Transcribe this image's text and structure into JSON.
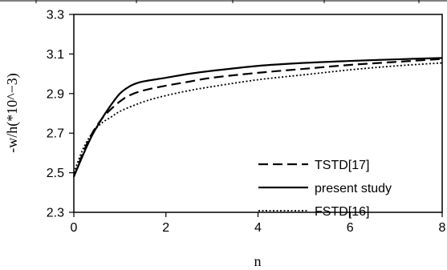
{
  "chart_data": {
    "type": "line",
    "title": "",
    "xlabel": "n",
    "ylabel": "-w/h(*10^−3)",
    "xlim": [
      0,
      8
    ],
    "ylim": [
      2.3,
      3.3
    ],
    "xticks": [
      0,
      2,
      4,
      6,
      8
    ],
    "yticks": [
      2.3,
      2.5,
      2.7,
      2.9,
      3.1,
      3.3
    ],
    "xtick_labels": [
      "0",
      "2",
      "4",
      "6",
      "8"
    ],
    "ytick_labels": [
      "2.3",
      "2.5",
      "2.7",
      "2.9",
      "3.1",
      "3.3"
    ],
    "grid": false,
    "legend_position": "bottom-right",
    "series": [
      {
        "name": "TSTD[17]",
        "style": "dashed",
        "color": "#000000",
        "x": [
          0,
          0.2,
          0.4,
          0.6,
          0.8,
          1.0,
          1.2,
          1.5,
          2.0,
          2.5,
          3.0,
          4.0,
          5.0,
          6.0,
          7.0,
          8.0
        ],
        "y": [
          2.48,
          2.6,
          2.7,
          2.77,
          2.82,
          2.86,
          2.89,
          2.915,
          2.94,
          2.96,
          2.98,
          3.005,
          3.025,
          3.045,
          3.06,
          3.075
        ]
      },
      {
        "name": "present study",
        "style": "solid",
        "color": "#000000",
        "x": [
          0,
          0.2,
          0.4,
          0.6,
          0.8,
          1.0,
          1.2,
          1.4,
          1.6,
          2.0,
          2.5,
          3.0,
          4.0,
          5.0,
          6.0,
          7.0,
          8.0
        ],
        "y": [
          2.48,
          2.59,
          2.69,
          2.77,
          2.84,
          2.9,
          2.935,
          2.955,
          2.965,
          2.98,
          3.0,
          3.015,
          3.04,
          3.055,
          3.065,
          3.073,
          3.08
        ]
      },
      {
        "name": "FSTD[16]",
        "style": "dotted",
        "color": "#000000",
        "x": [
          0,
          0.2,
          0.4,
          0.6,
          0.8,
          1.0,
          1.3,
          1.6,
          2.0,
          2.5,
          3.0,
          4.0,
          5.0,
          6.0,
          7.0,
          8.0
        ],
        "y": [
          2.5,
          2.62,
          2.7,
          2.75,
          2.78,
          2.81,
          2.84,
          2.865,
          2.89,
          2.915,
          2.935,
          2.97,
          2.995,
          3.02,
          3.04,
          3.055
        ]
      }
    ]
  }
}
